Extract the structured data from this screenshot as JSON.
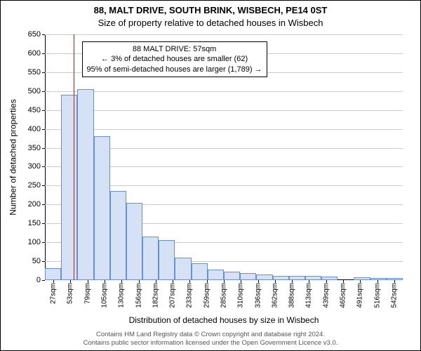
{
  "titles": {
    "line1": "88, MALT DRIVE, SOUTH BRINK, WISBECH, PE14 0ST",
    "line2": "Size of property relative to detached houses in Wisbech"
  },
  "chart": {
    "type": "histogram",
    "ylim": [
      0,
      650
    ],
    "ytick_step": 50,
    "ylabel": "Number of detached properties",
    "xlabel": "Distribution of detached houses by size in Wisbech",
    "x_tick_labels": [
      "27sqm",
      "53sqm",
      "79sqm",
      "105sqm",
      "130sqm",
      "156sqm",
      "182sqm",
      "207sqm",
      "233sqm",
      "259sqm",
      "285sqm",
      "310sqm",
      "336sqm",
      "362sqm",
      "388sqm",
      "413sqm",
      "439sqm",
      "465sqm",
      "491sqm",
      "516sqm",
      "542sqm"
    ],
    "bar_values": [
      32,
      490,
      505,
      380,
      235,
      205,
      115,
      105,
      60,
      45,
      28,
      22,
      18,
      15,
      12,
      12,
      12,
      10,
      0,
      8,
      6,
      6
    ],
    "bar_fill": "#d5e2f6",
    "bar_border": "#6a8fd0",
    "grid_color": "#cccccc",
    "background_color": "#ffffff",
    "marker_x_sqm": 57,
    "marker_color": "#dd1111",
    "x_data_min": 14,
    "x_data_max": 555
  },
  "callout": {
    "line1": "88 MALT DRIVE: 57sqm",
    "line2": "← 3% of detached houses are smaller (62)",
    "line3": "95% of semi-detached houses are larger (1,789) →"
  },
  "footer": {
    "line1": "Contains HM Land Registry data © Crown copyright and database right 2024.",
    "line2": "Contains public sector information licensed under the Open Government Licence v3.0."
  }
}
